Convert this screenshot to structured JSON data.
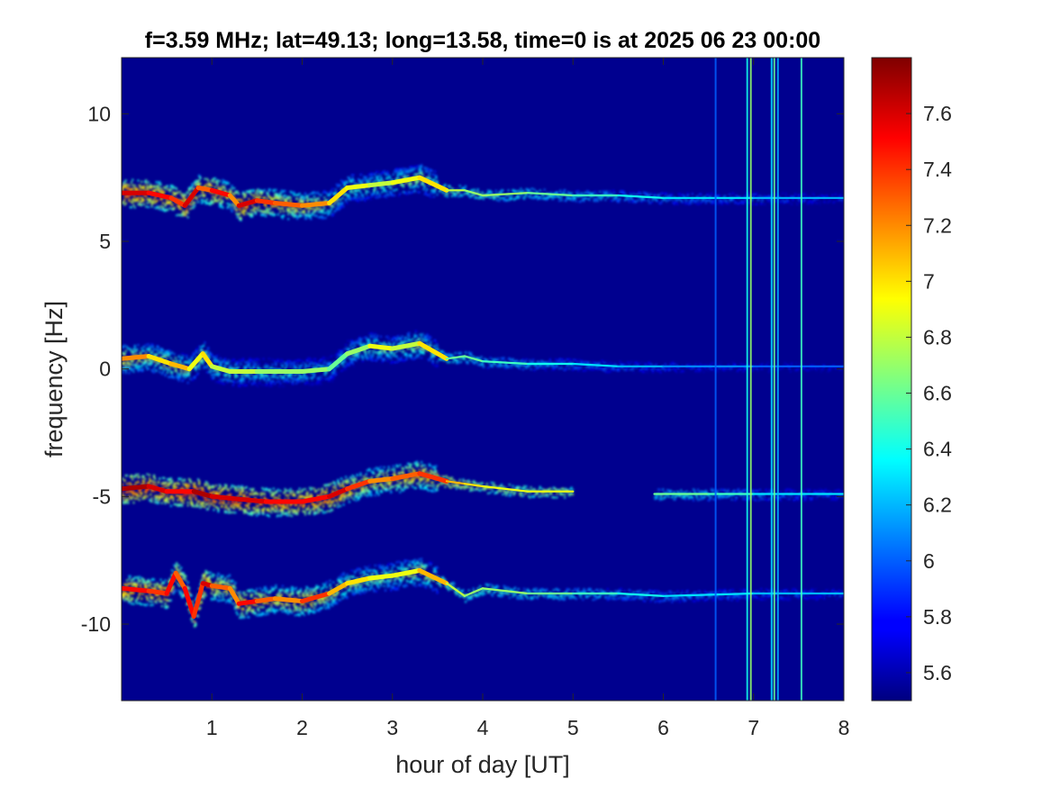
{
  "chart_data": {
    "type": "heatmap",
    "title": "f=3.59 MHz;  lat=49.13; long=13.58, time=0 is at 2025 06 23 00:00",
    "xlabel": "hour of day [UT]",
    "ylabel": "frequency [Hz]",
    "xlim": [
      0,
      8
    ],
    "ylim": [
      -13,
      12.2
    ],
    "x_ticks": [
      1,
      2,
      3,
      4,
      5,
      6,
      7,
      8
    ],
    "y_ticks": [
      -10,
      -5,
      0,
      5,
      10
    ],
    "colorbar": {
      "colormap": "jet",
      "range": [
        5.5,
        7.8
      ],
      "ticks": [
        5.6,
        5.8,
        6,
        6.2,
        6.4,
        6.6,
        6.8,
        7,
        7.2,
        7.4,
        7.6
      ]
    },
    "background_color": "#00008f",
    "traces": [
      {
        "name": "trace-1",
        "points": [
          [
            0,
            6.9
          ],
          [
            0.3,
            6.9
          ],
          [
            0.55,
            6.7
          ],
          [
            0.7,
            6.4
          ],
          [
            0.85,
            7.1
          ],
          [
            1.0,
            7.0
          ],
          [
            1.2,
            6.8
          ],
          [
            1.3,
            6.4
          ],
          [
            1.5,
            6.6
          ],
          [
            1.7,
            6.5
          ],
          [
            2.0,
            6.4
          ],
          [
            2.3,
            6.5
          ],
          [
            2.5,
            7.1
          ],
          [
            2.75,
            7.2
          ],
          [
            3.0,
            7.3
          ],
          [
            3.3,
            7.5
          ],
          [
            3.6,
            7.0
          ],
          [
            3.8,
            7.0
          ],
          [
            4.0,
            6.8
          ],
          [
            4.5,
            6.9
          ],
          [
            5.0,
            6.8
          ],
          [
            5.5,
            6.8
          ],
          [
            6.0,
            6.7
          ],
          [
            7.0,
            6.7
          ],
          [
            8.0,
            6.7
          ]
        ],
        "intensity": [
          7.6,
          7.5,
          7.4,
          7.6,
          7.3,
          7.5,
          7.2,
          7.6,
          7.4,
          7.3,
          7.2,
          7.0,
          6.9,
          6.8,
          6.9,
          7.0,
          6.8,
          6.7,
          6.7,
          6.6,
          6.5,
          6.4,
          6.3,
          6.2,
          6.0
        ]
      },
      {
        "name": "trace-2",
        "points": [
          [
            0,
            0.4
          ],
          [
            0.3,
            0.5
          ],
          [
            0.55,
            0.2
          ],
          [
            0.75,
            0.0
          ],
          [
            0.9,
            0.6
          ],
          [
            1.0,
            0.1
          ],
          [
            1.2,
            -0.1
          ],
          [
            1.5,
            -0.1
          ],
          [
            2.0,
            -0.1
          ],
          [
            2.3,
            0.0
          ],
          [
            2.5,
            0.6
          ],
          [
            2.75,
            0.9
          ],
          [
            3.0,
            0.8
          ],
          [
            3.3,
            1.0
          ],
          [
            3.6,
            0.4
          ],
          [
            3.8,
            0.5
          ],
          [
            4.0,
            0.3
          ],
          [
            4.5,
            0.2
          ],
          [
            5.0,
            0.2
          ],
          [
            5.5,
            0.1
          ],
          [
            6.0,
            0.1
          ],
          [
            7.0,
            0.1
          ],
          [
            8.0,
            0.1
          ]
        ],
        "intensity": [
          7.2,
          7.0,
          7.1,
          6.9,
          7.0,
          6.8,
          6.8,
          6.7,
          6.7,
          6.6,
          6.7,
          6.9,
          6.8,
          7.0,
          6.6,
          6.6,
          6.5,
          6.4,
          6.3,
          6.2,
          6.1,
          6.0,
          5.9
        ]
      },
      {
        "name": "trace-3",
        "points": [
          [
            0,
            -4.7
          ],
          [
            0.3,
            -4.6
          ],
          [
            0.5,
            -4.8
          ],
          [
            0.8,
            -4.8
          ],
          [
            1.0,
            -5.0
          ],
          [
            1.3,
            -5.1
          ],
          [
            1.6,
            -5.2
          ],
          [
            2.0,
            -5.2
          ],
          [
            2.3,
            -5.0
          ],
          [
            2.5,
            -4.7
          ],
          [
            2.75,
            -4.4
          ],
          [
            3.0,
            -4.3
          ],
          [
            3.3,
            -4.1
          ],
          [
            3.6,
            -4.4
          ],
          [
            3.8,
            -4.5
          ],
          [
            4.0,
            -4.6
          ],
          [
            4.5,
            -4.8
          ],
          [
            5.0,
            -4.8
          ]
        ],
        "intensity": [
          7.7,
          7.6,
          7.5,
          7.7,
          7.6,
          7.6,
          7.5,
          7.5,
          7.6,
          7.4,
          7.2,
          7.3,
          7.4,
          7.1,
          7.0,
          6.9,
          6.9,
          6.9
        ]
      },
      {
        "name": "trace-3b",
        "points": [
          [
            5.9,
            -4.9
          ],
          [
            6.5,
            -4.9
          ],
          [
            7.0,
            -4.9
          ],
          [
            8.0,
            -4.9
          ]
        ],
        "intensity": [
          6.6,
          6.5,
          6.3,
          6.1
        ]
      },
      {
        "name": "trace-4",
        "points": [
          [
            0,
            -8.6
          ],
          [
            0.3,
            -8.7
          ],
          [
            0.5,
            -8.8
          ],
          [
            0.6,
            -8.0
          ],
          [
            0.7,
            -8.6
          ],
          [
            0.8,
            -9.7
          ],
          [
            0.9,
            -8.4
          ],
          [
            1.0,
            -8.5
          ],
          [
            1.2,
            -8.6
          ],
          [
            1.3,
            -9.2
          ],
          [
            1.5,
            -9.1
          ],
          [
            1.7,
            -9.0
          ],
          [
            2.0,
            -9.1
          ],
          [
            2.3,
            -8.8
          ],
          [
            2.5,
            -8.4
          ],
          [
            2.75,
            -8.2
          ],
          [
            3.0,
            -8.1
          ],
          [
            3.3,
            -7.9
          ],
          [
            3.6,
            -8.4
          ],
          [
            3.8,
            -8.9
          ],
          [
            4.0,
            -8.6
          ],
          [
            4.5,
            -8.8
          ],
          [
            5.0,
            -8.8
          ],
          [
            5.5,
            -8.8
          ],
          [
            6.0,
            -8.9
          ],
          [
            7.0,
            -8.8
          ],
          [
            8.0,
            -8.8
          ]
        ],
        "intensity": [
          7.5,
          7.4,
          7.5,
          7.3,
          7.5,
          7.4,
          7.6,
          7.3,
          7.2,
          7.5,
          7.3,
          7.2,
          7.4,
          7.1,
          7.0,
          6.9,
          6.9,
          7.1,
          6.8,
          6.7,
          6.7,
          6.6,
          6.5,
          6.4,
          6.3,
          6.2,
          6.1
        ]
      }
    ],
    "vertical_streaks": [
      {
        "x": 6.58,
        "intensity": 6.0
      },
      {
        "x": 6.93,
        "intensity": 6.4
      },
      {
        "x": 6.97,
        "intensity": 6.7
      },
      {
        "x": 7.2,
        "intensity": 6.3
      },
      {
        "x": 7.23,
        "intensity": 6.6
      },
      {
        "x": 7.27,
        "intensity": 6.2
      },
      {
        "x": 7.53,
        "intensity": 6.5
      }
    ]
  }
}
